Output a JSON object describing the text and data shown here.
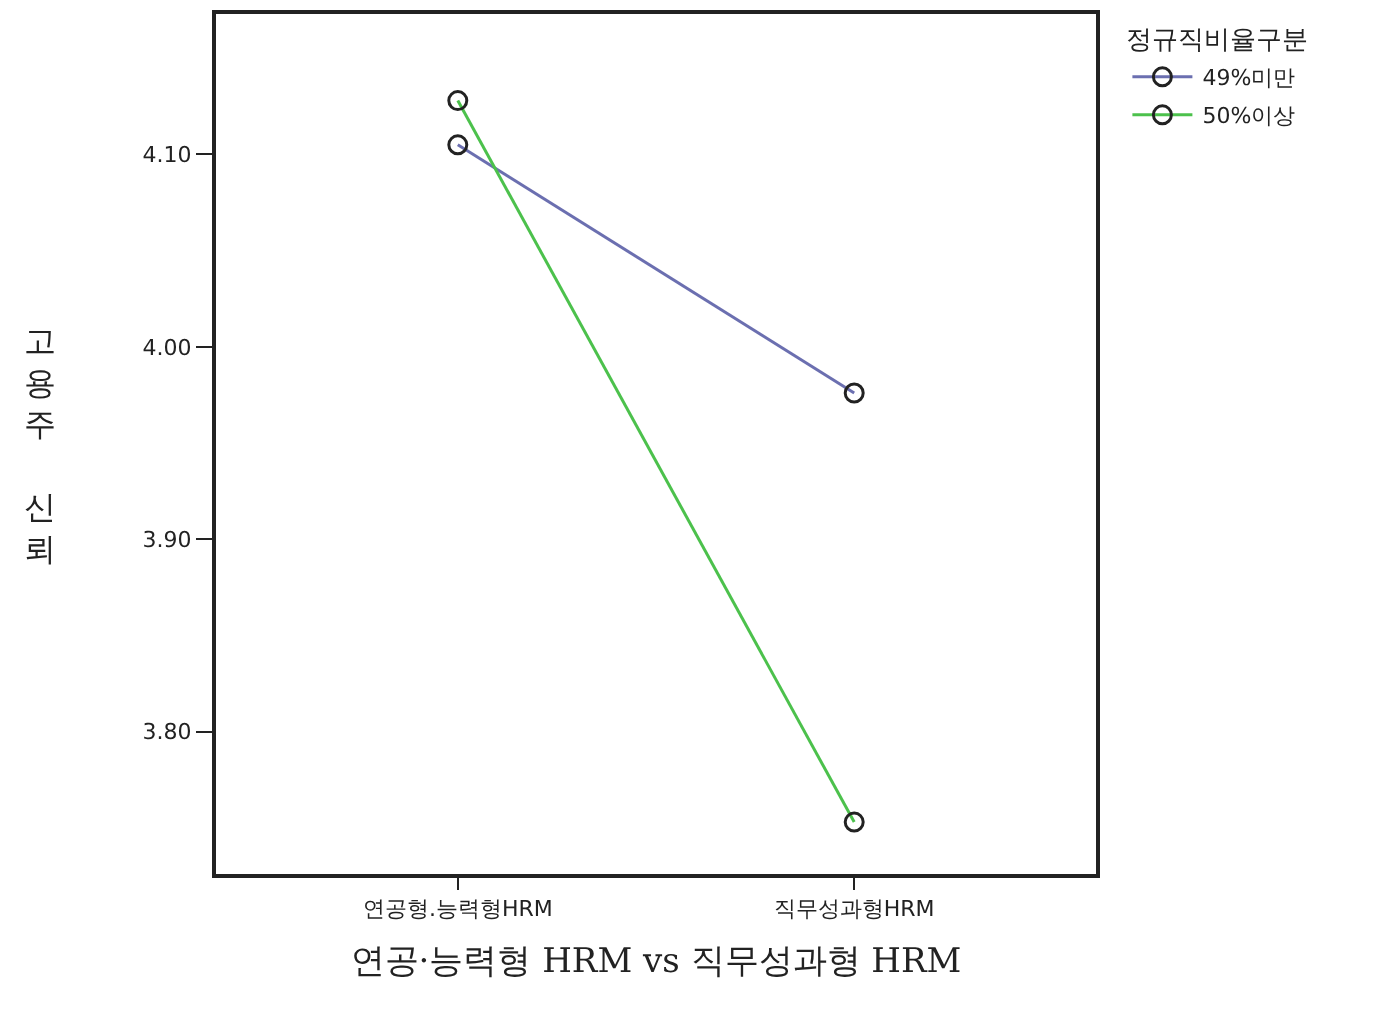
{
  "chart_data": {
    "type": "line",
    "xlabel": "연공·능력형 HRM vs 직무성과형 HRM",
    "ylabel": "고용주 신뢰",
    "legend_title": "정규직비율구분",
    "categories": [
      "연공형.능력형HRM",
      "직무성과형HRM"
    ],
    "series": [
      {
        "name": "49%미만",
        "color": "#6b6fb0",
        "values": [
          4.105,
          3.976
        ]
      },
      {
        "name": "50%이상",
        "color": "#4cc14c",
        "values": [
          4.128,
          3.753
        ]
      }
    ],
    "ylim": [
      3.726,
      4.173
    ],
    "yticks": [
      {
        "value": 3.8,
        "label": "3.80"
      },
      {
        "value": 3.9,
        "label": "3.90"
      },
      {
        "value": 4.0,
        "label": "4.00"
      },
      {
        "value": 4.1,
        "label": "4.10"
      }
    ],
    "marker": "circle",
    "line_style": "solid",
    "legend": "top right"
  }
}
